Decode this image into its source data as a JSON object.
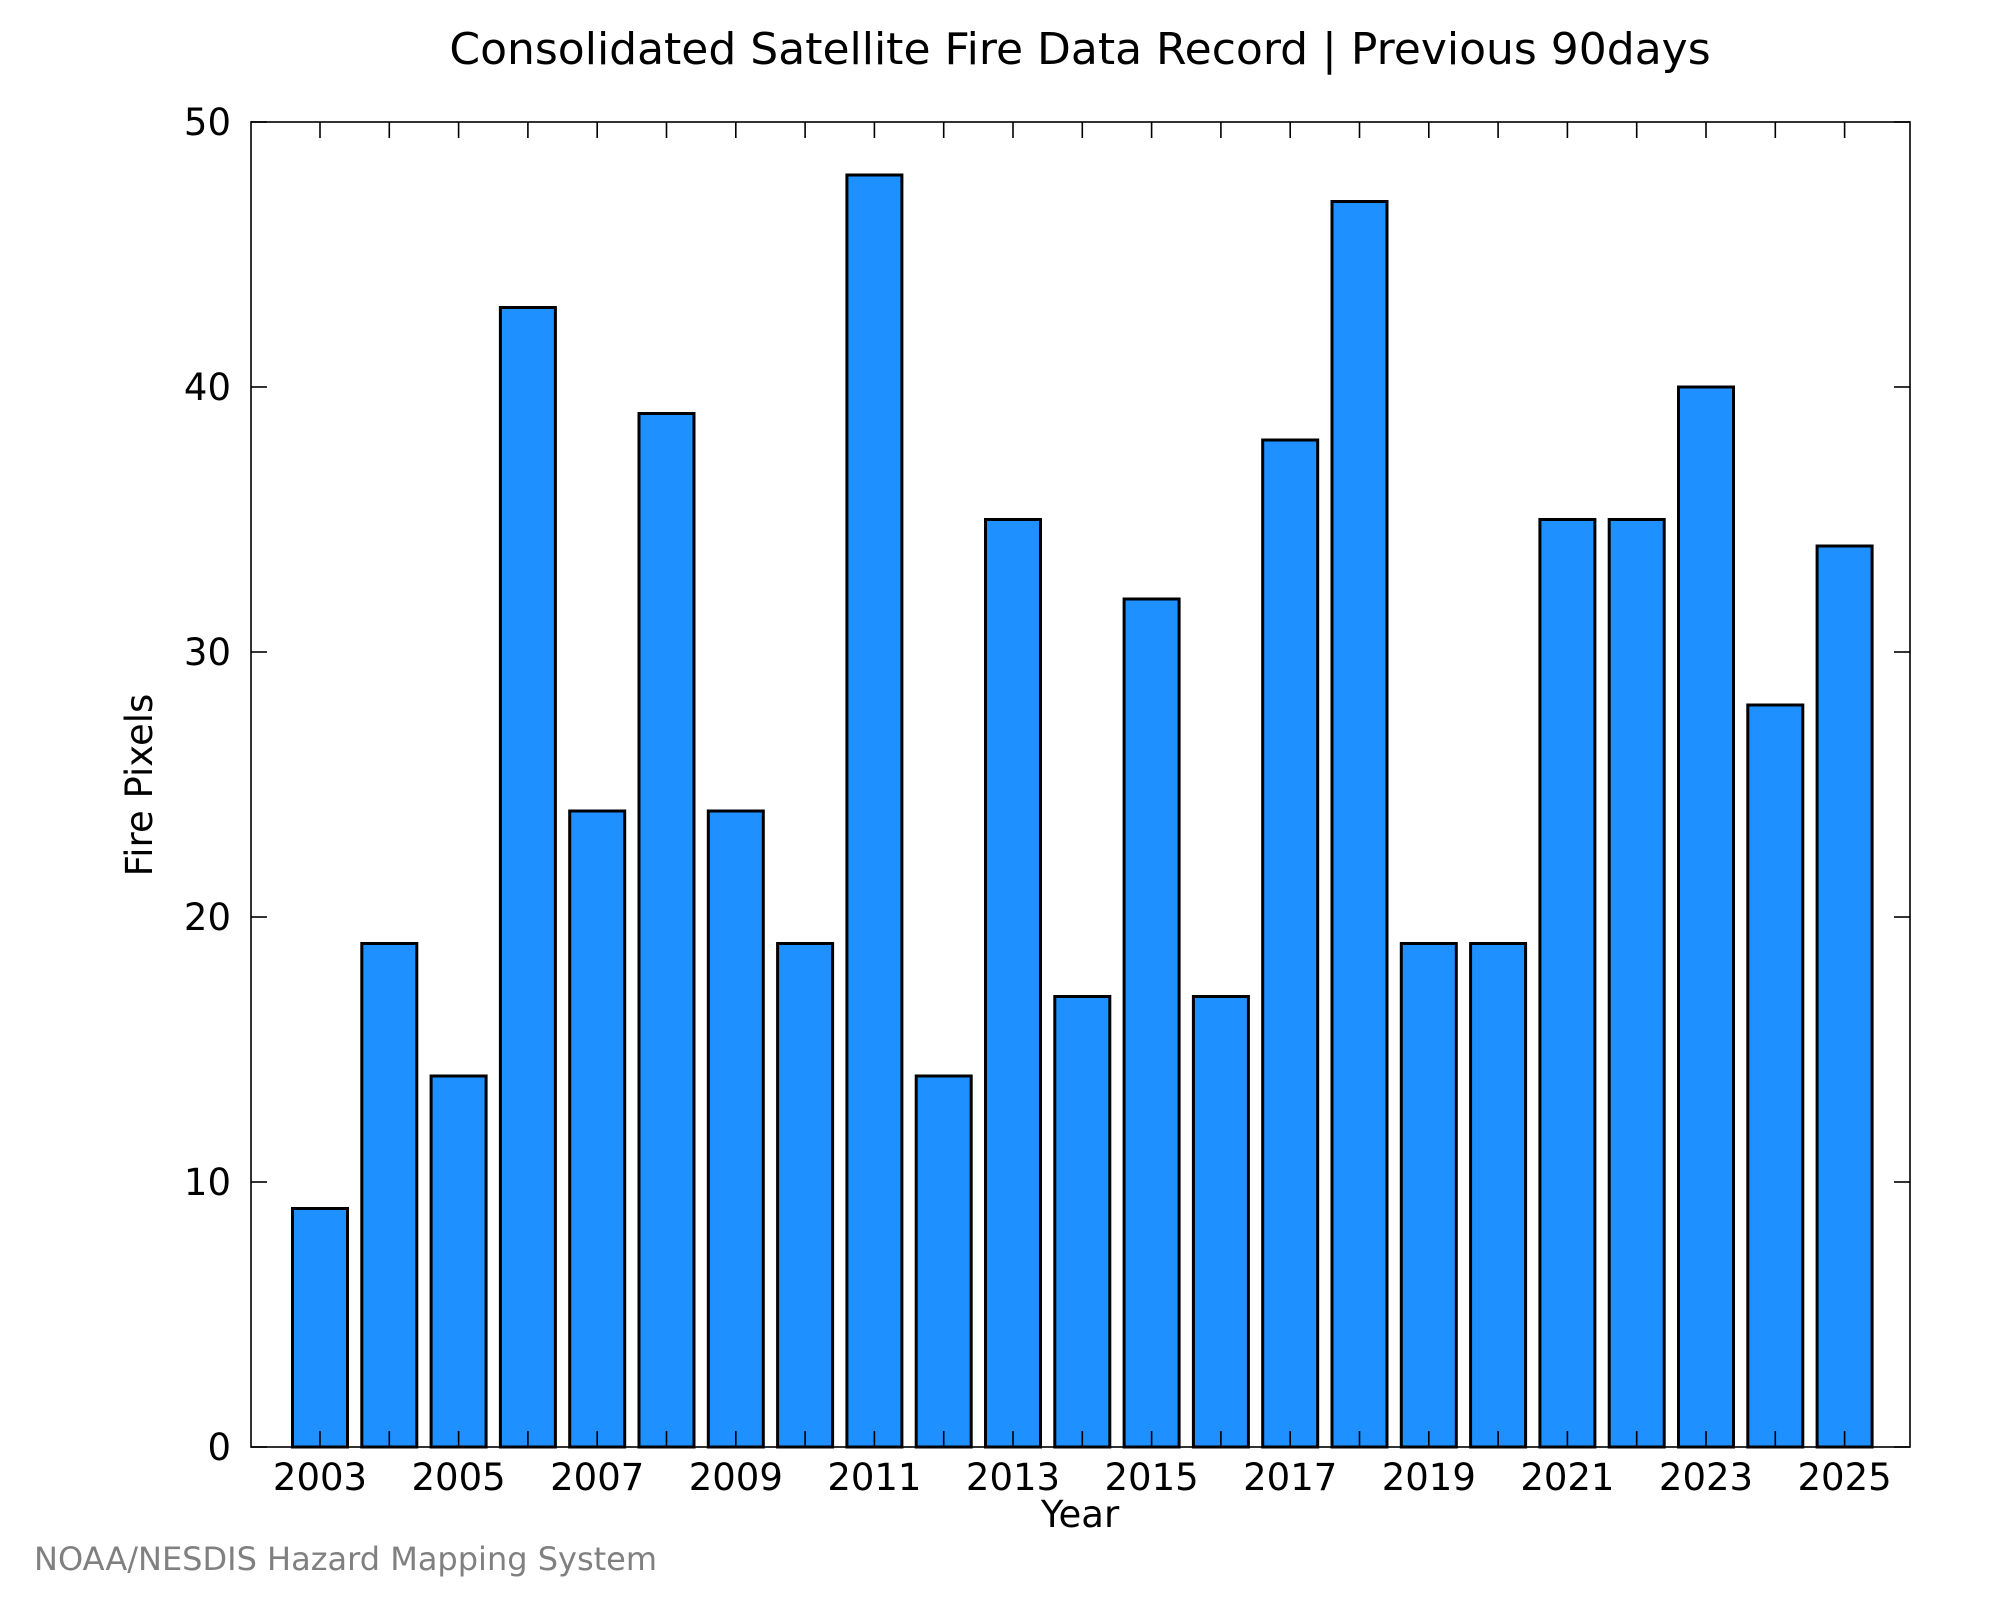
{
  "chart_data": {
    "type": "bar",
    "title": "Consolidated Satellite Fire Data Record | Previous 90days",
    "xlabel": "Year",
    "ylabel": "Fire Pixels",
    "categories": [
      "2003",
      "2004",
      "2005",
      "2006",
      "2007",
      "2008",
      "2009",
      "2010",
      "2011",
      "2012",
      "2013",
      "2014",
      "2015",
      "2016",
      "2017",
      "2018",
      "2019",
      "2020",
      "2021",
      "2022",
      "2023",
      "2024",
      "2025"
    ],
    "values": [
      9,
      19,
      14,
      43,
      24,
      39,
      24,
      19,
      48,
      14,
      35,
      17,
      32,
      17,
      38,
      47,
      19,
      19,
      35,
      35,
      40,
      28,
      34
    ],
    "xticks": [
      "2003",
      "2005",
      "2007",
      "2009",
      "2011",
      "2013",
      "2015",
      "2017",
      "2019",
      "2021",
      "2023",
      "2025"
    ],
    "yticks": [
      "0",
      "10",
      "20",
      "30",
      "40",
      "50"
    ],
    "ylim": [
      0,
      50
    ],
    "grid": false,
    "bar_color": "#1e90ff",
    "bar_edge_color": "#000000"
  },
  "credit": "NOAA/NESDIS Hazard Mapping System"
}
